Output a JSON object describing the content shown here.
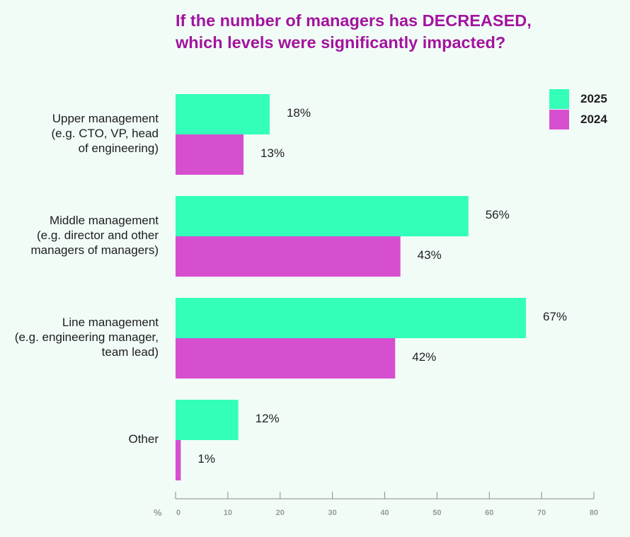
{
  "title_lines": [
    "If the number of managers has DECREASED,",
    "which levels were significantly impacted?"
  ],
  "colors": {
    "series_2025": "#33ffb8",
    "series_2024": "#d64fcf",
    "title": "#a3139e",
    "axis": "#8a8a8a"
  },
  "legend": [
    {
      "label": "2025",
      "color": "#33ffb8"
    },
    {
      "label": "2024",
      "color": "#d64fcf"
    }
  ],
  "axis": {
    "unit": "%"
  },
  "chart_data": {
    "type": "bar",
    "orientation": "horizontal",
    "title": "If the number of managers has DECREASED, which levels were significantly impacted?",
    "categories": [
      "Upper management\n(e.g. CTO, VP, head\nof engineering)",
      "Middle management\n(e.g. director and other\nmanagers of managers)",
      "Line management\n(e.g. engineering manager,\nteam lead)",
      "Other"
    ],
    "series": [
      {
        "name": "2025",
        "values": [
          18,
          56,
          67,
          12
        ]
      },
      {
        "name": "2024",
        "values": [
          13,
          43,
          42,
          1
        ]
      }
    ],
    "value_labels": [
      [
        "18%",
        "56%",
        "67%",
        "12%"
      ],
      [
        "13%",
        "43%",
        "42%",
        "1%"
      ]
    ],
    "xlim": [
      0,
      80
    ],
    "xticks": [
      0,
      10,
      20,
      30,
      40,
      50,
      60,
      70,
      80
    ],
    "xlabel": "%",
    "grid": false,
    "legend_position": "top-right"
  }
}
